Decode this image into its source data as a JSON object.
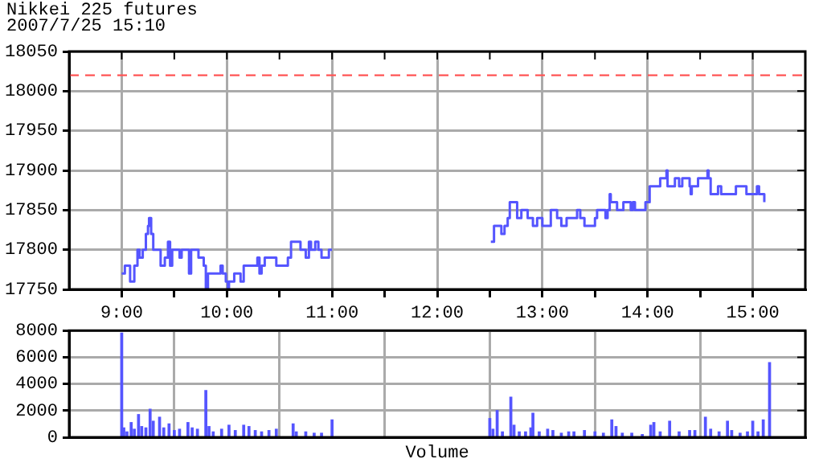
{
  "chart_data": [
    {
      "type": "step",
      "title": "Nikkei 225 futures",
      "subtitle": "2007/7/25 15:10",
      "color": "#5555ff",
      "x": [
        9.0,
        9.03,
        9.08,
        9.12,
        9.15,
        9.17,
        9.2,
        9.23,
        9.25,
        9.26,
        9.28,
        9.3,
        9.37,
        9.41,
        9.44,
        9.46,
        9.48,
        9.55,
        9.57,
        9.64,
        9.66,
        9.73,
        9.78,
        9.8,
        9.82,
        9.94,
        9.96,
        9.99,
        10.01,
        10.02,
        10.07,
        10.13,
        10.16,
        10.29,
        10.31,
        10.33,
        10.36,
        10.47,
        10.58,
        10.61,
        10.7,
        10.75,
        10.78,
        10.8,
        10.84,
        10.87,
        10.9,
        10.97,
        11.0,
        12.0,
        12.51,
        12.54,
        12.61,
        12.64,
        12.67,
        12.69,
        12.76,
        12.8,
        12.86,
        12.91,
        12.95,
        13.0,
        13.08,
        13.14,
        13.18,
        13.23,
        13.33,
        13.36,
        13.4,
        13.5,
        13.52,
        13.6,
        13.62,
        13.64,
        13.65,
        13.71,
        13.77,
        13.84,
        13.86,
        13.88,
        13.98,
        14.02,
        14.12,
        14.18,
        14.19,
        14.26,
        14.3,
        14.33,
        14.4,
        14.41,
        14.42,
        14.48,
        14.57,
        14.58,
        14.6,
        14.67,
        14.7,
        14.84,
        14.94,
        15.04,
        15.06,
        15.11
      ],
      "values": [
        17770,
        17780,
        17760,
        17780,
        17800,
        17790,
        17800,
        17820,
        17830,
        17840,
        17820,
        17800,
        17780,
        17790,
        17810,
        17780,
        17800,
        17790,
        17800,
        17770,
        17800,
        17790,
        17780,
        17750,
        17770,
        17780,
        17770,
        17760,
        17750,
        17760,
        17770,
        17760,
        17780,
        17790,
        17770,
        17780,
        17790,
        17780,
        17790,
        17810,
        17800,
        17790,
        17810,
        17800,
        17810,
        17800,
        17790,
        17800,
        17800,
        null,
        17810,
        17830,
        17820,
        17830,
        17840,
        17860,
        17840,
        17850,
        17840,
        17830,
        17840,
        17830,
        17850,
        17840,
        17830,
        17840,
        17850,
        17840,
        17830,
        17840,
        17850,
        17840,
        17850,
        17870,
        17860,
        17850,
        17860,
        17850,
        17860,
        17850,
        17860,
        17880,
        17890,
        17900,
        17880,
        17890,
        17880,
        17890,
        17880,
        17870,
        17880,
        17890,
        17900,
        17890,
        17870,
        17880,
        17870,
        17880,
        17870,
        17880,
        17870,
        17860
      ],
      "xlim": [
        8.5,
        15.5
      ],
      "ylim": [
        17750,
        18050
      ],
      "xticks": [
        {
          "value": 9,
          "label": "9:00"
        },
        {
          "value": 9.5,
          "label": null
        },
        {
          "value": 10,
          "label": "10:00"
        },
        {
          "value": 10.5,
          "label": null
        },
        {
          "value": 11,
          "label": "11:00"
        },
        {
          "value": 11.5,
          "label": null
        },
        {
          "value": 12,
          "label": "12:00"
        },
        {
          "value": 12.5,
          "label": null
        },
        {
          "value": 13,
          "label": "13:00"
        },
        {
          "value": 13.5,
          "label": null
        },
        {
          "value": 14,
          "label": "14:00"
        },
        {
          "value": 14.5,
          "label": null
        },
        {
          "value": 15,
          "label": "15:00"
        }
      ],
      "yticks": [
        17750,
        17800,
        17850,
        17900,
        17950,
        18000,
        18050
      ],
      "grid": true,
      "ref_lines": [
        {
          "axis": "y",
          "value": 18020,
          "color": "#ff5555",
          "line_style": "dashed"
        }
      ]
    },
    {
      "type": "bar",
      "xlabel": "Volume",
      "color": "#5555ff",
      "tick_labels": "y",
      "x": [
        9.0,
        9.02,
        9.05,
        9.09,
        9.12,
        9.16,
        9.19,
        9.23,
        9.27,
        9.3,
        9.36,
        9.4,
        9.45,
        9.5,
        9.55,
        9.63,
        9.67,
        9.72,
        9.8,
        9.83,
        9.87,
        9.95,
        10.02,
        10.08,
        10.16,
        10.21,
        10.27,
        10.33,
        10.4,
        10.47,
        10.63,
        10.66,
        10.75,
        10.83,
        10.9,
        11.0,
        12.5,
        12.53,
        12.57,
        12.62,
        12.7,
        12.73,
        12.78,
        12.84,
        12.89,
        12.91,
        12.97,
        13.05,
        13.1,
        13.18,
        13.25,
        13.3,
        13.4,
        13.5,
        13.58,
        13.66,
        13.7,
        13.76,
        13.85,
        13.95,
        14.03,
        14.06,
        14.12,
        14.21,
        14.3,
        14.4,
        14.45,
        14.55,
        14.6,
        14.68,
        14.76,
        14.8,
        14.88,
        14.95,
        15.0,
        15.05,
        15.1,
        15.16
      ],
      "values": [
        7800,
        700,
        400,
        1100,
        600,
        1700,
        800,
        700,
        2100,
        1200,
        1500,
        700,
        1000,
        500,
        600,
        1100,
        700,
        600,
        3500,
        800,
        400,
        600,
        900,
        500,
        900,
        800,
        500,
        400,
        500,
        600,
        1000,
        400,
        400,
        300,
        300,
        1300,
        1400,
        600,
        2000,
        400,
        3000,
        900,
        400,
        400,
        700,
        1800,
        400,
        600,
        500,
        300,
        400,
        400,
        500,
        400,
        300,
        1300,
        800,
        300,
        300,
        200,
        900,
        1100,
        400,
        1200,
        400,
        500,
        500,
        1500,
        600,
        400,
        1200,
        500,
        300,
        400,
        1200,
        400,
        1300,
        5600
      ],
      "xlim": [
        8.5,
        15.5
      ],
      "ylim": [
        0,
        8000
      ],
      "xticks": [
        9,
        10,
        11,
        12,
        13,
        14,
        15
      ],
      "yticks": [
        0,
        2000,
        4000,
        6000,
        8000
      ],
      "grid": true
    }
  ]
}
